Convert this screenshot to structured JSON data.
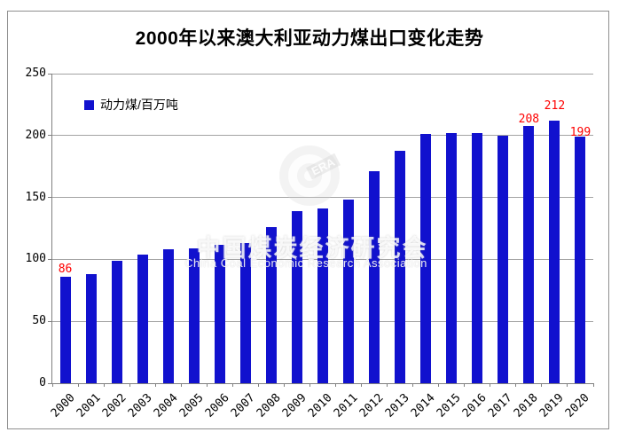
{
  "title": "2000年以来澳大利亚动力煤出口变化走势",
  "legend": {
    "label": "动力煤/百万吨"
  },
  "watermark": {
    "logo_text": "ERA",
    "cn": "中国煤炭经济研究会",
    "en": "China Coal Economic Research Association"
  },
  "colors": {
    "bar": "#1111ce",
    "annotation": "#fe0000",
    "gridline": "#a3a3a3",
    "axis": "#808080"
  },
  "chart_data": {
    "type": "bar",
    "title": "2000年以来澳大利亚动力煤出口变化走势",
    "xlabel": "",
    "ylabel": "动力煤/百万吨",
    "categories": [
      "2000",
      "2001",
      "2002",
      "2003",
      "2004",
      "2005",
      "2006",
      "2007",
      "2008",
      "2009",
      "2010",
      "2011",
      "2012",
      "2013",
      "2014",
      "2015",
      "2016",
      "2017",
      "2018",
      "2019",
      "2020"
    ],
    "values": [
      86,
      88,
      99,
      104,
      108,
      109,
      112,
      113,
      126,
      139,
      141,
      148,
      171,
      188,
      201,
      202,
      202,
      200,
      208,
      212,
      199
    ],
    "ylim": [
      0,
      250
    ],
    "yticks": [
      "0",
      "50",
      "100",
      "150",
      "200",
      "250"
    ],
    "grid": true,
    "legend_position": "top-left",
    "annotations": [
      {
        "category": "2000",
        "label": "86"
      },
      {
        "category": "2018",
        "label": "208"
      },
      {
        "category": "2019",
        "label": "212"
      },
      {
        "category": "2020",
        "label": "199"
      }
    ]
  }
}
